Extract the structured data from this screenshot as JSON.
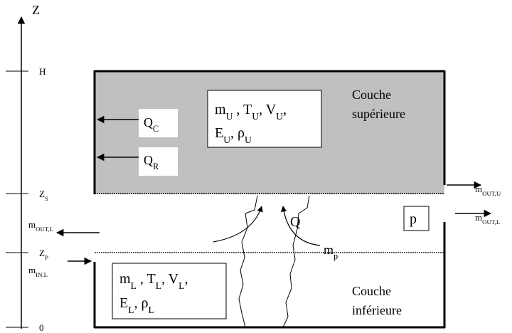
{
  "axis": {
    "label": [
      "Z"
    ],
    "ticks": [
      [
        "H"
      ],
      [
        "Z",
        {
          "sub": "S"
        }
      ],
      [
        "Z",
        {
          "sub": "P"
        }
      ],
      [
        "0"
      ]
    ]
  },
  "upper_layer": {
    "name": [
      [
        "Couche"
      ],
      [
        "supérieure"
      ]
    ],
    "state": [
      [
        "m",
        {
          "sub": "U"
        },
        " , T",
        {
          "sub": "U"
        },
        ", V",
        {
          "sub": "U"
        },
        ","
      ],
      [
        "E",
        {
          "sub": "U"
        },
        ", ρ",
        {
          "sub": "U"
        }
      ]
    ],
    "convection": [
      "Q",
      {
        "sub": "C"
      }
    ],
    "radiation": [
      "Q",
      {
        "sub": "R"
      }
    ],
    "outflow": [
      "m",
      {
        "sub": "OUT,U"
      }
    ]
  },
  "lower_layer": {
    "name": [
      [
        "Couche"
      ],
      [
        "inférieure"
      ]
    ],
    "state": [
      [
        "m",
        {
          "sub": "L"
        },
        " , T",
        {
          "sub": "L"
        },
        ", V",
        {
          "sub": "L"
        },
        ","
      ],
      [
        "E",
        {
          "sub": "L"
        },
        ", ρ",
        {
          "sub": "L"
        }
      ]
    ],
    "outflow_right": [
      "m",
      {
        "sub": "OUT,L"
      }
    ],
    "outflow_left": [
      "m",
      {
        "sub": "OUT,L"
      }
    ],
    "inflow": [
      "m",
      {
        "sub": "IN,L"
      }
    ]
  },
  "plume": {
    "heat": [
      "Q"
    ],
    "entrainment": [
      "m",
      {
        "sub": "p"
      }
    ]
  },
  "pressure": [
    "p"
  ]
}
